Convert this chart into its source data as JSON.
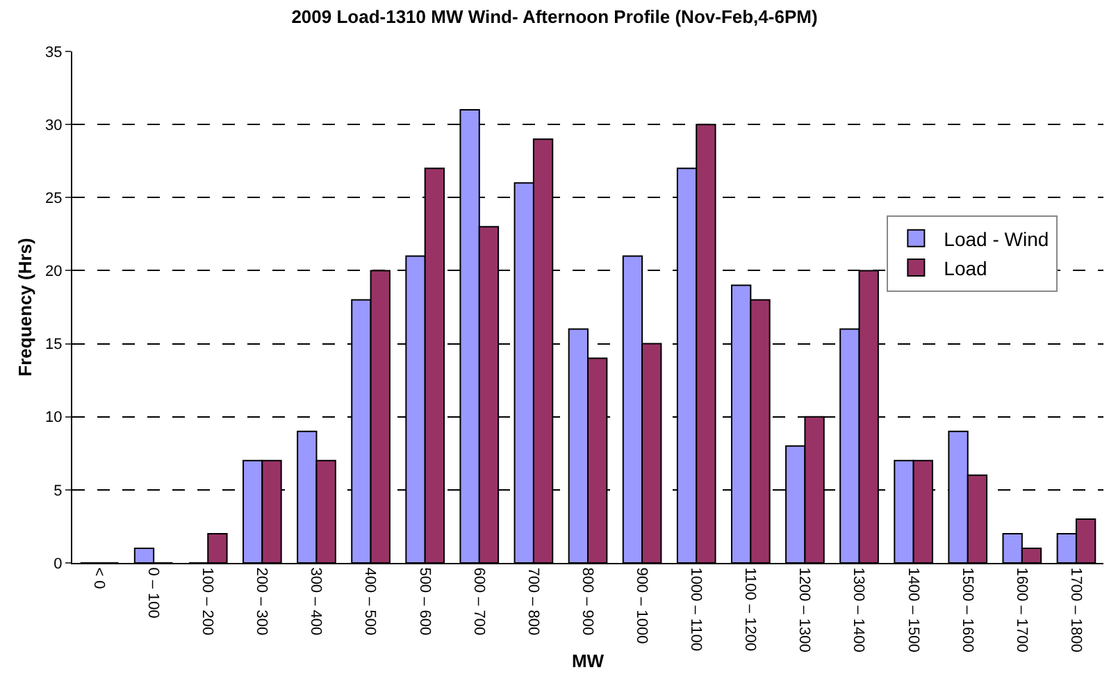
{
  "chart_data": {
    "type": "bar",
    "title": "2009 Load-1310 MW Wind- Afternoon Profile (Nov-Feb,4-6PM)",
    "xlabel": "MW",
    "ylabel": "Frequency (Hrs)",
    "categories": [
      "< 0",
      "0 – 100",
      "100 – 200",
      "200 – 300",
      "300 – 400",
      "400 – 500",
      "500 – 600",
      "600 – 700",
      "700 – 800",
      "800 – 900",
      "900 – 1000",
      "1000 – 1100",
      "1100 – 1200",
      "1200 – 1300",
      "1300 – 1400",
      "1400 – 1500",
      "1500 – 1600",
      "1600 – 1700",
      "1700 – 1800"
    ],
    "series": [
      {
        "name": "Load - Wind",
        "color": "#9999ff",
        "values": [
          0,
          1,
          0,
          7,
          9,
          18,
          21,
          31,
          26,
          16,
          21,
          27,
          19,
          8,
          16,
          7,
          9,
          2,
          2
        ]
      },
      {
        "name": "Load",
        "color": "#993366",
        "values": [
          0,
          0,
          2,
          7,
          7,
          20,
          27,
          23,
          29,
          14,
          15,
          30,
          18,
          10,
          20,
          7,
          6,
          1,
          3
        ]
      }
    ],
    "ylim": [
      0,
      35
    ],
    "yticks": [
      0,
      5,
      10,
      15,
      20,
      25,
      30,
      35
    ],
    "grid": "y",
    "line_style": "dashed",
    "legend": "right"
  }
}
